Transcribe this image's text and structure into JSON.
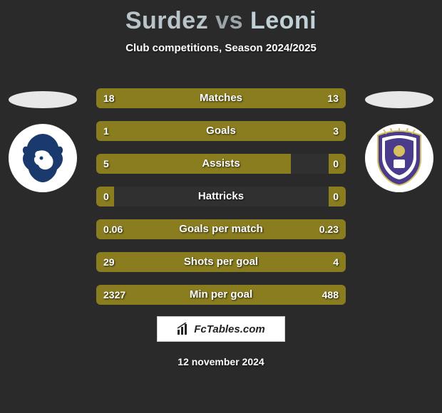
{
  "title": {
    "player1": "Surdez",
    "vs": "vs",
    "player2": "Leoni",
    "player1_color": "#b8c4c9",
    "vs_color": "#9ca6aa",
    "player2_color": "#c0d0d6",
    "fontsize": 34,
    "fontweight": 900
  },
  "subtitle": {
    "text": "Club competitions, Season 2024/2025",
    "color": "#ffffff",
    "fontsize": 15
  },
  "background_color": "#2a2a2a",
  "ellipse": {
    "color": "#e8e8e8",
    "width": 96,
    "height": 24
  },
  "logos": {
    "left": {
      "bg": "#ffffff",
      "primary": "#1a3a6e",
      "secondary": "#ffffff",
      "width": 96
    },
    "right": {
      "bg": "#ffffff",
      "primary": "#4a3c8a",
      "secondary": "#ffffff",
      "width": 96
    }
  },
  "bars": {
    "track_bg": "rgba(255,255,255,0.03)",
    "height": 28,
    "gap": 18,
    "border_radius": 6,
    "label_fontsize": 15,
    "value_fontsize": 14,
    "text_color": "#ffffff",
    "left_color": "#8a7d1f",
    "right_color": "#8a7d1f",
    "rows": [
      {
        "label": "Matches",
        "left_val": "18",
        "right_val": "13",
        "left_pct": 58,
        "right_pct": 42
      },
      {
        "label": "Goals",
        "left_val": "1",
        "right_val": "3",
        "left_pct": 25,
        "right_pct": 75
      },
      {
        "label": "Assists",
        "left_val": "5",
        "right_val": "0",
        "left_pct": 78,
        "right_pct": 7
      },
      {
        "label": "Hattricks",
        "left_val": "0",
        "right_val": "0",
        "left_pct": 7,
        "right_pct": 7
      },
      {
        "label": "Goals per match",
        "left_val": "0.06",
        "right_val": "0.23",
        "left_pct": 21,
        "right_pct": 79
      },
      {
        "label": "Shots per goal",
        "left_val": "29",
        "right_val": "4",
        "left_pct": 88,
        "right_pct": 12
      },
      {
        "label": "Min per goal",
        "left_val": "2327",
        "right_val": "488",
        "left_pct": 83,
        "right_pct": 17
      }
    ]
  },
  "footer_logo": {
    "text": "FcTables.com",
    "bg": "#ffffff",
    "border": "#cccccc",
    "text_color": "#222222"
  },
  "date": {
    "text": "12 november 2024",
    "color": "#ffffff",
    "fontsize": 14
  }
}
